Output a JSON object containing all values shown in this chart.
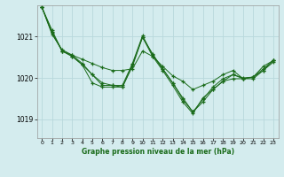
{
  "background_color": "#d4ecee",
  "grid_color": "#b8d8dc",
  "line_color": "#1a6b1a",
  "marker": "+",
  "title": "Graphe pression niveau de la mer (hPa)",
  "xlim": [
    -0.5,
    23.5
  ],
  "ylim": [
    1018.55,
    1021.75
  ],
  "yticks": [
    1019,
    1020,
    1021
  ],
  "xticks": [
    0,
    1,
    2,
    3,
    4,
    5,
    6,
    7,
    8,
    9,
    10,
    11,
    12,
    13,
    14,
    15,
    16,
    17,
    18,
    19,
    20,
    21,
    22,
    23
  ],
  "series": [
    [
      1021.7,
      1021.15,
      1020.65,
      1020.55,
      1020.45,
      1020.35,
      1020.25,
      1020.18,
      1020.18,
      1020.22,
      1020.65,
      1020.52,
      1020.28,
      1020.05,
      1019.92,
      1019.72,
      1019.82,
      1019.92,
      1020.08,
      1020.18,
      1019.98,
      1019.98,
      1020.18,
      1020.38
    ],
    [
      1021.7,
      1021.1,
      1020.65,
      1020.52,
      1020.32,
      1020.08,
      1019.88,
      1019.82,
      1019.78,
      1020.28,
      1020.98,
      1020.58,
      1020.22,
      1019.88,
      1019.52,
      1019.18,
      1019.42,
      1019.72,
      1019.92,
      1020.08,
      1019.98,
      1020.02,
      1020.28,
      1020.42
    ],
    [
      1021.7,
      1021.08,
      1020.65,
      1020.52,
      1020.32,
      1019.88,
      1019.78,
      1019.78,
      1019.78,
      1020.32,
      1020.98,
      1020.52,
      1020.18,
      1019.82,
      1019.42,
      1019.14,
      1019.52,
      1019.72,
      1019.92,
      1019.98,
      1019.98,
      1020.02,
      1020.18,
      1020.42
    ],
    [
      1021.7,
      1021.05,
      1020.68,
      1020.55,
      1020.35,
      1020.08,
      1019.82,
      1019.82,
      1019.82,
      1020.35,
      1021.02,
      1020.55,
      1020.22,
      1019.88,
      1019.48,
      1019.18,
      1019.48,
      1019.78,
      1019.98,
      1020.08,
      1020.0,
      1020.02,
      1020.22,
      1020.42
    ]
  ]
}
